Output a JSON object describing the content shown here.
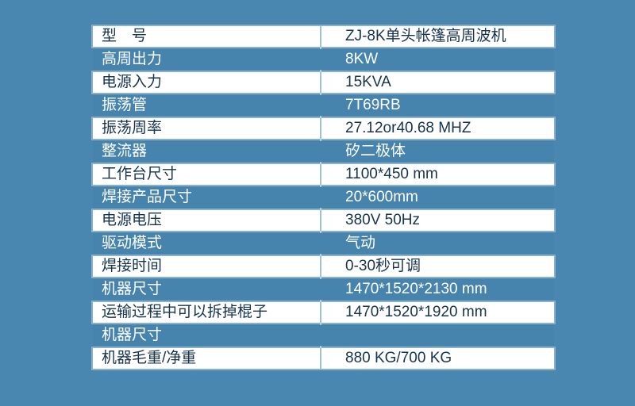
{
  "page": {
    "background_color": "#4a87b0"
  },
  "colors": {
    "row_blue": "#4684ae",
    "row_white": "#ffffff",
    "text_dark": "#17344f",
    "text_light": "#ffffff",
    "divider": "#9cc2d8"
  },
  "spec_table": {
    "rows": [
      {
        "label": "型　号",
        "value": "ZJ-8K单头帐篷高周波机",
        "variant": "white"
      },
      {
        "label": "高周出力",
        "value": "8KW",
        "variant": "blue"
      },
      {
        "label": "电源入力",
        "value": "15KVA",
        "variant": "white"
      },
      {
        "label": "振荡管",
        "value": "7T69RB",
        "variant": "blue"
      },
      {
        "label": "振荡周率",
        "value": "27.12or40.68 MHZ",
        "variant": "white"
      },
      {
        "label": "整流器",
        "value": "矽二极体",
        "variant": "blue"
      },
      {
        "label": "工作台尺寸",
        "value": "1100*450 mm",
        "variant": "white"
      },
      {
        "label": "焊接产品尺寸",
        "value": "20*600mm",
        "variant": "blue"
      },
      {
        "label": "电源电压",
        "value": "380V 50Hz",
        "variant": "white"
      },
      {
        "label": "驱动模式",
        "value": "气动",
        "variant": "blue"
      },
      {
        "label": "焊接时间",
        "value": "0-30秒可调",
        "variant": "white"
      },
      {
        "label": "机器尺寸",
        "value": "1470*1520*2130 mm",
        "variant": "blue"
      },
      {
        "label": "运输过程中可以拆掉棍子",
        "value": "1470*1520*1920 mm",
        "variant": "white"
      },
      {
        "label": "机器尺寸",
        "value": "",
        "variant": "blue"
      },
      {
        "label": "机器毛重/净重",
        "value": "880 KG/700 KG",
        "variant": "white"
      }
    ]
  }
}
